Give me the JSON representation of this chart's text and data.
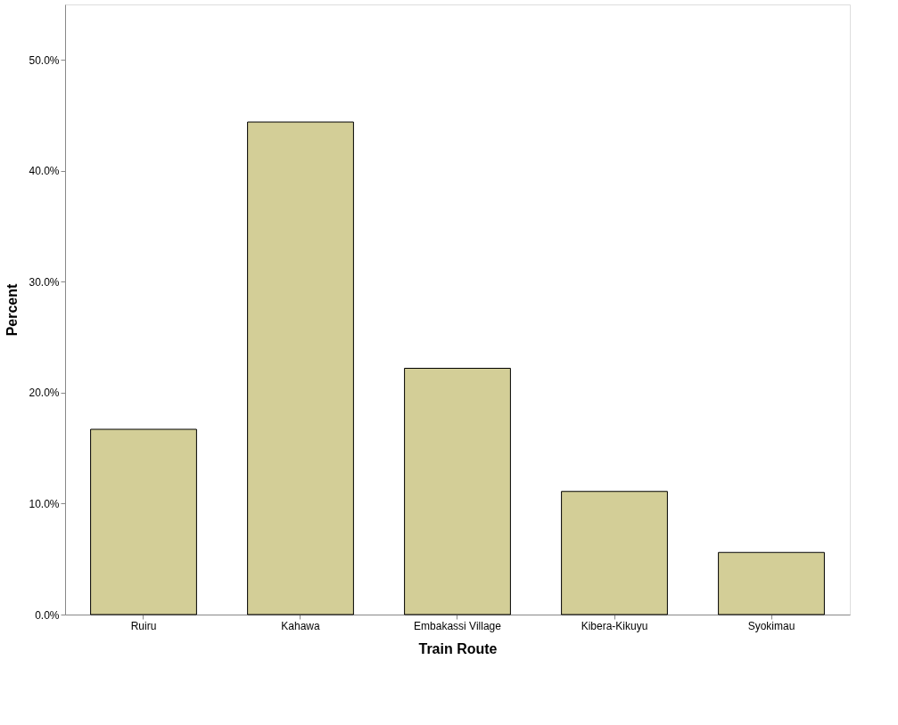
{
  "chart_data": {
    "type": "bar",
    "xlabel": "Train Route",
    "ylabel": "Percent",
    "categories": [
      "Ruiru",
      "Kahawa",
      "Embakassi Village",
      "Kibera-Kikuyu",
      "Syokimau"
    ],
    "values": [
      16.7,
      44.4,
      22.2,
      11.1,
      5.6
    ],
    "color": "#d3ce97",
    "ylim": [
      0,
      55
    ],
    "yticks": [
      {
        "value": 0,
        "label": "0.0%"
      },
      {
        "value": 10,
        "label": "10.0%"
      },
      {
        "value": 20,
        "label": "20.0%"
      },
      {
        "value": 30,
        "label": "30.0%"
      },
      {
        "value": 40,
        "label": "40.0%"
      },
      {
        "value": 50,
        "label": "50.0%"
      }
    ],
    "grid": false
  }
}
